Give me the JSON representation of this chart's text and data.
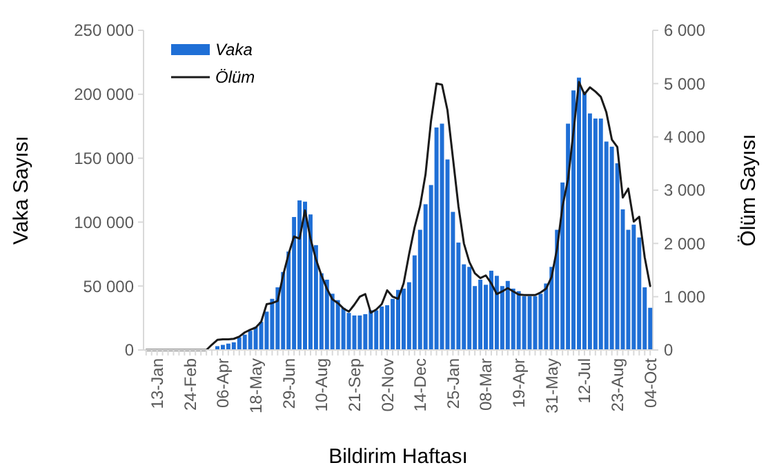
{
  "chart_data": {
    "type": "bar",
    "xlabel": "Bildirim Haftası",
    "ylabel": "Vaka Sayısı",
    "y2label": "Ölüm Sayısı",
    "categories": [
      null,
      null,
      "13-Jan",
      null,
      null,
      null,
      null,
      null,
      "24-Feb",
      null,
      null,
      null,
      null,
      null,
      "06-Apr",
      null,
      null,
      null,
      null,
      null,
      "18-May",
      null,
      null,
      null,
      null,
      null,
      "29-Jun",
      null,
      null,
      null,
      null,
      null,
      "10-Aug",
      null,
      null,
      null,
      null,
      null,
      "21-Sep",
      null,
      null,
      null,
      null,
      null,
      "02-Nov",
      null,
      null,
      null,
      null,
      null,
      "14-Dec",
      null,
      null,
      null,
      null,
      null,
      "25-Jan",
      null,
      null,
      null,
      null,
      null,
      "08-Mar",
      null,
      null,
      null,
      null,
      null,
      "19-Apr",
      null,
      null,
      null,
      null,
      null,
      "31-May",
      null,
      null,
      null,
      null,
      null,
      "12-Jul",
      null,
      null,
      null,
      null,
      null,
      "23-Aug",
      null,
      null,
      null,
      null,
      null,
      "04-Oct"
    ],
    "series": [
      {
        "name": "Vaka",
        "color": "#1f6fd6",
        "values": [
          0,
          0,
          0,
          0,
          0,
          0,
          0,
          0,
          0,
          0,
          0,
          0,
          null,
          3000,
          4000,
          5000,
          6000,
          10000,
          12000,
          15000,
          18000,
          22000,
          30000,
          40000,
          49000,
          61000,
          77000,
          104000,
          117000,
          116000,
          106000,
          82000,
          60000,
          55000,
          44000,
          39000,
          33000,
          29000,
          27000,
          27000,
          28000,
          31000,
          31000,
          34000,
          35000,
          40000,
          47000,
          48000,
          53000,
          74000,
          94000,
          114000,
          129000,
          174000,
          177000,
          149000,
          108000,
          84000,
          67000,
          65000,
          50000,
          55000,
          51000,
          62000,
          58000,
          50000,
          54000,
          48000,
          46000,
          42000,
          42000,
          42000,
          44000,
          52000,
          65000,
          94000,
          131000,
          177000,
          203000,
          213000,
          202000,
          185000,
          181000,
          181000,
          163000,
          159000,
          146000,
          110000,
          94000,
          98000,
          88000,
          49000,
          33000
        ]
      },
      {
        "name": "Ölüm",
        "type": "line",
        "axis": "y2",
        "color": "#1a1a1a",
        "values": [
          0,
          0,
          0,
          0,
          0,
          0,
          0,
          0,
          0,
          0,
          0,
          0,
          100,
          190,
          200,
          200,
          210,
          250,
          330,
          380,
          420,
          530,
          860,
          880,
          920,
          1400,
          1800,
          2130,
          2090,
          2620,
          2090,
          1700,
          1400,
          1150,
          950,
          880,
          780,
          720,
          850,
          1000,
          1050,
          700,
          760,
          860,
          1120,
          1000,
          960,
          1250,
          1800,
          2300,
          2700,
          3300,
          4300,
          5000,
          4980,
          4500,
          3600,
          2700,
          2000,
          1650,
          1440,
          1350,
          1400,
          1250,
          1050,
          1100,
          1160,
          1100,
          1040,
          1030,
          1030,
          1030,
          1080,
          1150,
          1370,
          1900,
          2700,
          3200,
          4100,
          5030,
          4800,
          4930,
          4850,
          4750,
          4460,
          3950,
          3810,
          2860,
          3030,
          2410,
          2500,
          1740,
          1200
        ]
      }
    ],
    "ylim": [
      0,
      250000
    ],
    "yticks": [
      0,
      {
        "value": 50000,
        "label": "50 000"
      },
      {
        "value": 100000,
        "label": "100 000"
      },
      {
        "value": 150000,
        "label": "150 000"
      },
      {
        "value": 200000,
        "label": "200 000"
      },
      {
        "value": 250000,
        "label": "250 000"
      }
    ],
    "y2lim": [
      0,
      6000
    ],
    "y2ticks": [
      0,
      {
        "value": 1000,
        "label": "1 000"
      },
      {
        "value": 2000,
        "label": "2 000"
      },
      {
        "value": 3000,
        "label": "3 000"
      },
      {
        "value": 4000,
        "label": "4 000"
      },
      {
        "value": 5000,
        "label": "5 000"
      },
      {
        "value": 6000,
        "label": "6 000"
      }
    ],
    "legend": "top left",
    "marker": "none",
    "line_style": "solid"
  }
}
